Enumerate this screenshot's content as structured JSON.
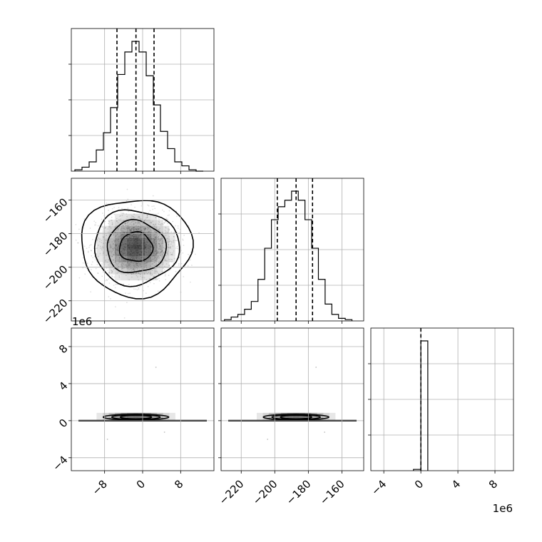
{
  "chart_data": {
    "type": "corner",
    "parameters": 3,
    "panels": [
      {
        "id": "hist-p1",
        "type": "histogram",
        "x_ticks": [
          -8,
          0,
          8
        ],
        "x_range": [
          -15,
          15
        ],
        "quantiles": [
          -5.4,
          -1.4,
          2.4
        ],
        "bin_width": 1.5,
        "bin_starts": [
          -14.25,
          -12.75,
          -11.25,
          -9.75,
          -8.25,
          -6.75,
          -5.25,
          -3.75,
          -2.25,
          -0.75,
          0.75,
          2.25,
          3.75,
          5.25,
          6.75,
          8.25,
          9.75,
          11.25
        ],
        "counts": [
          0.01,
          0.03,
          0.07,
          0.16,
          0.29,
          0.48,
          0.73,
          0.9,
          0.98,
          0.9,
          0.72,
          0.5,
          0.3,
          0.17,
          0.07,
          0.04,
          0.01,
          0.0
        ]
      },
      {
        "id": "hist-p2",
        "type": "histogram",
        "x_ticks": [
          -220,
          -200,
          -180,
          -160
        ],
        "x_range": [
          -232,
          -147
        ],
        "quantiles": [
          -198.5,
          -187.3,
          -177.5
        ],
        "bin_width": 4.0,
        "bin_starts": [
          -230,
          -226,
          -222,
          -218,
          -214,
          -210,
          -206,
          -202,
          -198,
          -194,
          -190,
          -186,
          -182,
          -178,
          -174,
          -170,
          -166,
          -162,
          -158
        ],
        "counts": [
          0.01,
          0.03,
          0.05,
          0.09,
          0.15,
          0.32,
          0.56,
          0.78,
          0.88,
          0.93,
          1.0,
          0.93,
          0.78,
          0.56,
          0.32,
          0.13,
          0.05,
          0.02,
          0.01
        ]
      },
      {
        "id": "hist-p3",
        "type": "histogram",
        "x_ticks": [
          -4,
          0,
          4,
          8
        ],
        "x_range": [
          -5.4,
          10.0
        ],
        "exponent_label": "1e6",
        "quantiles": [
          0.0
        ],
        "bins": [
          {
            "x0": -0.8,
            "x1": 0.0,
            "count": 0.01
          },
          {
            "x0": 0.0,
            "x1": 0.75,
            "count": 1.0
          }
        ]
      },
      {
        "id": "scatter-p1-p2",
        "type": "2d-density",
        "x_ticks": [
          -8,
          0,
          8
        ],
        "y_ticks": [
          -220,
          -200,
          -180,
          -160
        ],
        "x_range": [
          -15,
          15
        ],
        "y_range": [
          -232,
          -147
        ],
        "center": [
          -1.4,
          -188
        ],
        "sigma": [
          4.0,
          10.0
        ],
        "contour_levels": [
          0.9,
          1.6,
          2.3,
          3.0
        ]
      },
      {
        "id": "scatter-p1-p3",
        "type": "2d-density",
        "x_ticks": [
          -8,
          0,
          8
        ],
        "y_ticks": [
          -4,
          0,
          4,
          8
        ],
        "y_exponent_label": "1e6",
        "x_range": [
          -15,
          15
        ],
        "y_range": [
          -5.4,
          10.0
        ],
        "center": [
          -1.4,
          0.3
        ]
      },
      {
        "id": "scatter-p2-p3",
        "type": "2d-density",
        "x_ticks": [
          -220,
          -200,
          -180,
          -160
        ],
        "y_ticks": [
          -4,
          0,
          4,
          8
        ],
        "x_range": [
          -232,
          -147
        ],
        "y_range": [
          -5.4,
          10.0
        ],
        "center": [
          -187.3,
          0.3
        ]
      }
    ],
    "grid": true
  }
}
